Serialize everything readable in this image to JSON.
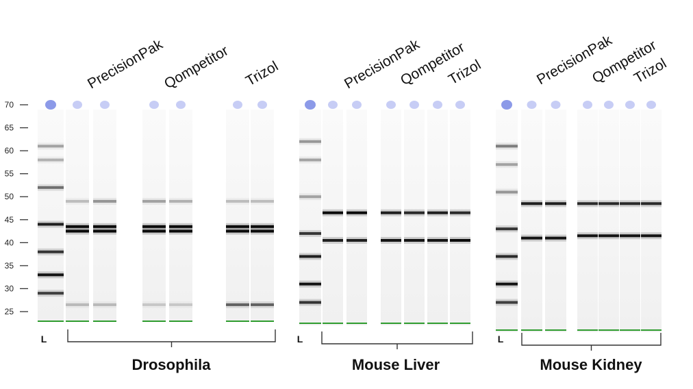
{
  "y_axis": {
    "ticks": [
      "70",
      "65",
      "60",
      "55",
      "50",
      "45",
      "40",
      "35",
      "30",
      "25"
    ]
  },
  "panels": [
    {
      "group_label": "Drosophila",
      "ladder_label": "L",
      "column_headers": [
        "PrecisionPak",
        "Qompetitor",
        "Trizol"
      ],
      "lanes": [
        {
          "id": "L",
          "bands": [
            [
              61,
              0.3
            ],
            [
              58,
              0.25
            ],
            [
              52,
              0.5
            ],
            [
              44,
              0.85
            ],
            [
              38,
              0.75
            ],
            [
              33,
              0.9
            ],
            [
              29,
              0.7
            ]
          ]
        },
        {
          "id": "PrecisionPak-1",
          "bands": [
            [
              49,
              0.2
            ],
            [
              43.5,
              0.95
            ],
            [
              42.5,
              0.95
            ],
            [
              26.5,
              0.2
            ]
          ]
        },
        {
          "id": "PrecisionPak-2",
          "bands": [
            [
              49,
              0.35
            ],
            [
              43.5,
              0.95
            ],
            [
              42.5,
              0.95
            ],
            [
              26.5,
              0.2
            ]
          ]
        },
        {
          "id": "Qompetitor-1",
          "bands": [
            [
              49,
              0.3
            ],
            [
              43.5,
              0.95
            ],
            [
              42.5,
              0.95
            ],
            [
              26.5,
              0.15
            ]
          ]
        },
        {
          "id": "Qompetitor-2",
          "bands": [
            [
              49,
              0.25
            ],
            [
              43.5,
              0.95
            ],
            [
              42.5,
              0.95
            ],
            [
              26.5,
              0.15
            ]
          ]
        },
        {
          "id": "Trizol-1",
          "bands": [
            [
              49,
              0.2
            ],
            [
              43.5,
              0.95
            ],
            [
              42.5,
              0.95
            ],
            [
              26.5,
              0.55
            ]
          ]
        },
        {
          "id": "Trizol-2",
          "bands": [
            [
              49,
              0.2
            ],
            [
              43.5,
              0.95
            ],
            [
              42.5,
              0.95
            ],
            [
              26.5,
              0.55
            ]
          ]
        }
      ]
    },
    {
      "group_label": "Mouse Liver",
      "ladder_label": "L",
      "column_headers": [
        "PrecisionPak",
        "Qompetitor",
        "Trizol"
      ],
      "lanes": [
        {
          "id": "L",
          "bands": [
            [
              62,
              0.35
            ],
            [
              58,
              0.3
            ],
            [
              50,
              0.3
            ],
            [
              42,
              0.75
            ],
            [
              37,
              0.85
            ],
            [
              31,
              0.9
            ],
            [
              27,
              0.75
            ]
          ]
        },
        {
          "id": "PrecisionPak-1",
          "bands": [
            [
              46.5,
              0.95
            ],
            [
              40.5,
              0.85
            ]
          ]
        },
        {
          "id": "PrecisionPak-2",
          "bands": [
            [
              46.5,
              0.95
            ],
            [
              40.5,
              0.85
            ]
          ]
        },
        {
          "id": "Qompetitor-1",
          "bands": [
            [
              46.5,
              0.85
            ],
            [
              40.5,
              0.9
            ]
          ]
        },
        {
          "id": "Qompetitor-2",
          "bands": [
            [
              46.5,
              0.8
            ],
            [
              40.5,
              0.9
            ]
          ]
        },
        {
          "id": "Trizol-1",
          "bands": [
            [
              46.5,
              0.85
            ],
            [
              40.5,
              0.9
            ]
          ]
        },
        {
          "id": "Trizol-2",
          "bands": [
            [
              46.5,
              0.8
            ],
            [
              40.5,
              0.95
            ]
          ]
        }
      ]
    },
    {
      "group_label": "Mouse Kidney",
      "ladder_label": "L",
      "column_headers": [
        "PrecisionPak",
        "Qompetitor",
        "Trizol"
      ],
      "lanes": [
        {
          "id": "L",
          "bands": [
            [
              61,
              0.45
            ],
            [
              57,
              0.3
            ],
            [
              51,
              0.35
            ],
            [
              43,
              0.75
            ],
            [
              37,
              0.8
            ],
            [
              31,
              0.9
            ],
            [
              27,
              0.7
            ]
          ]
        },
        {
          "id": "PrecisionPak-1",
          "bands": [
            [
              48.5,
              0.85
            ],
            [
              41,
              0.9
            ]
          ]
        },
        {
          "id": "PrecisionPak-2",
          "bands": [
            [
              48.5,
              0.85
            ],
            [
              41,
              0.9
            ]
          ]
        },
        {
          "id": "Qompetitor-1",
          "bands": [
            [
              48.5,
              0.8
            ],
            [
              41.5,
              0.9
            ]
          ]
        },
        {
          "id": "Qompetitor-2",
          "bands": [
            [
              48.5,
              0.8
            ],
            [
              41.5,
              0.9
            ]
          ]
        },
        {
          "id": "Trizol-1",
          "bands": [
            [
              48.5,
              0.8
            ],
            [
              41.5,
              0.9
            ]
          ]
        },
        {
          "id": "Trizol-2",
          "bands": [
            [
              48.5,
              0.8
            ],
            [
              41.5,
              0.9
            ]
          ]
        }
      ]
    }
  ],
  "colors": {
    "band": "#000000",
    "loading_dot": "#c7cdf5",
    "ladder_dot": "#8c9ae8",
    "marker_line": "#2e9c2e",
    "bracket": "#333333"
  }
}
